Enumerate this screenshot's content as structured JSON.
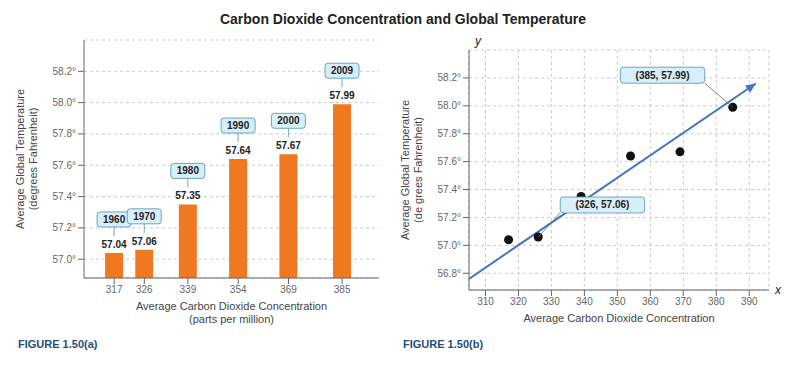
{
  "chart_data": [
    {
      "type": "bar",
      "title": "Carbon Dioxide Concentration and Global Temperature",
      "x": [
        317,
        326,
        339,
        354,
        369,
        385
      ],
      "values": [
        57.04,
        57.06,
        57.35,
        57.64,
        57.67,
        57.99
      ],
      "color": "#F07820",
      "xlim": [
        308,
        396
      ],
      "xticks": [
        317,
        326,
        339,
        354,
        369,
        385
      ],
      "ylim": [
        56.88,
        58.4
      ],
      "yticks": [
        {
          "value": 57.0,
          "label": "57.0°"
        },
        {
          "value": 57.2,
          "label": "57.2°"
        },
        {
          "value": 57.4,
          "label": "57.4°"
        },
        {
          "value": 57.6,
          "label": "57.6°"
        },
        {
          "value": 57.8,
          "label": "57.8°"
        },
        {
          "value": 58.0,
          "label": "58.0°"
        },
        {
          "value": 58.2,
          "label": "58.2°"
        }
      ],
      "xlabel": "Average Carbon Dioxide Concentration\n(parts per million)",
      "ylabel": "Average Global Temperature\n(degrees Fahrenheit)",
      "grid": true,
      "data_labels": true,
      "annotations": [
        {
          "text": "1960",
          "x": 317,
          "y": 57.04
        },
        {
          "text": "1970",
          "x": 326,
          "y": 57.06
        },
        {
          "text": "1980",
          "x": 339,
          "y": 57.35
        },
        {
          "text": "1990",
          "x": 354,
          "y": 57.64
        },
        {
          "text": "2000",
          "x": 369,
          "y": 57.67
        },
        {
          "text": "2009",
          "x": 385,
          "y": 57.99
        }
      ],
      "caption": "FIGURE 1.50(a)",
      "caption_color": "#1F4E79"
    },
    {
      "type": "scatter",
      "series": [
        {
          "type": "scatter",
          "color": "#111111",
          "x": [
            317,
            326,
            339,
            354,
            369,
            385
          ],
          "values": [
            57.04,
            57.06,
            57.35,
            57.64,
            57.67,
            57.99
          ]
        },
        {
          "type": "line",
          "color": "#4472C4",
          "marker": "arrow",
          "x": [
            305,
            392
          ],
          "values": [
            56.76,
            58.16
          ]
        }
      ],
      "xlim": [
        305,
        396
      ],
      "xticks": [
        310,
        320,
        330,
        340,
        350,
        360,
        370,
        380,
        390
      ],
      "ylim": [
        56.68,
        58.4
      ],
      "yticks": [
        {
          "value": 56.8,
          "label": "56.8°"
        },
        {
          "value": 57.0,
          "label": "57.0°"
        },
        {
          "value": 57.2,
          "label": "57.2°"
        },
        {
          "value": 57.4,
          "label": "57.4°"
        },
        {
          "value": 57.6,
          "label": "57.6°"
        },
        {
          "value": 57.8,
          "label": "57.8°"
        },
        {
          "value": 58.0,
          "label": "58.0°"
        },
        {
          "value": 58.2,
          "label": "58.2°"
        }
      ],
      "xlabel": "Average Carbon Dioxide Concentration",
      "ylabel": "Average Global Temperature\n(de grees Fahrenheit)",
      "grid": true,
      "annotations": [
        {
          "text": "(326, 57.06)",
          "x": 326,
          "y": 57.06
        },
        {
          "text": "(385, 57.99)",
          "x": 385,
          "y": 57.99
        }
      ],
      "axis_symbols": {
        "x": "x",
        "y": "y"
      },
      "caption": "FIGURE 1.50(b)",
      "caption_color": "#1F4E79"
    }
  ]
}
